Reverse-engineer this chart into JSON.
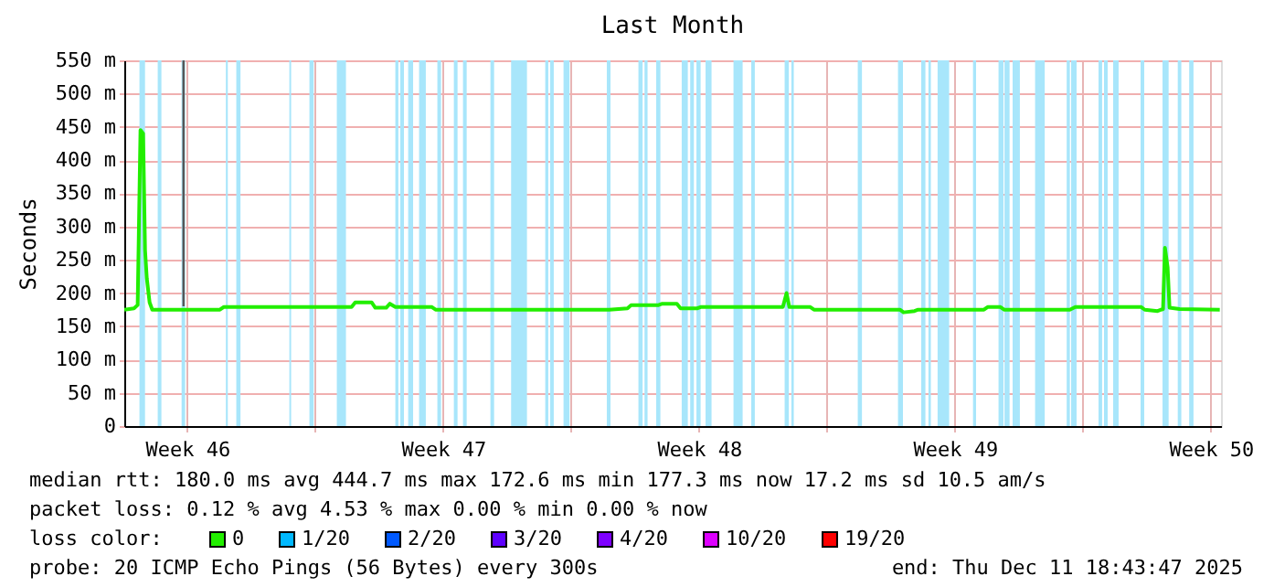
{
  "chart_data": {
    "type": "line",
    "title": "Last Month",
    "ylabel": "Seconds",
    "legend_title": "loss color:",
    "legend": "bottom",
    "grid": true,
    "xlim": [
      "2025-11-11T18:43",
      "2025-12-11T18:43"
    ],
    "xticks": [
      {
        "value": "2025-11-13T12:00",
        "label": "Week 46"
      },
      {
        "value": "2025-11-17T00:00",
        "label": null
      },
      {
        "value": "2025-11-20T12:00",
        "label": "Week 47"
      },
      {
        "value": "2025-11-24T00:00",
        "label": null
      },
      {
        "value": "2025-11-27T12:00",
        "label": "Week 48"
      },
      {
        "value": "2025-12-01T00:00",
        "label": null
      },
      {
        "value": "2025-12-04T12:00",
        "label": "Week 49"
      },
      {
        "value": "2025-12-08T00:00",
        "label": null
      },
      {
        "value": "2025-12-11T12:00",
        "label": "Week 50"
      }
    ],
    "ylim": [
      0,
      550
    ],
    "yticks": [
      0,
      {
        "value": 50,
        "label": "50 m"
      },
      {
        "value": 100,
        "label": "100 m"
      },
      {
        "value": 150,
        "label": "150 m"
      },
      {
        "value": 200,
        "label": "200 m"
      },
      {
        "value": 250,
        "label": "250 m"
      },
      {
        "value": 300,
        "label": "300 m"
      },
      {
        "value": 350,
        "label": "350 m"
      },
      {
        "value": 400,
        "label": "400 m"
      },
      {
        "value": 450,
        "label": "450 m"
      },
      {
        "value": 500,
        "label": "500 m"
      },
      {
        "value": 550,
        "label": "550 m"
      }
    ],
    "series": [
      {
        "name": "0",
        "color": "#22ee00",
        "x": [
          "2025-11-11T18:45",
          "2025-11-12T01:05",
          "2025-11-12T03:30",
          "2025-11-12T05:20",
          "2025-11-12T07:05",
          "2025-11-12T08:20",
          "2025-11-12T09:30",
          "2025-11-12T11:20",
          "2025-11-12T13:05",
          "2025-11-14T09:30",
          "2025-11-14T11:55",
          "2025-11-17T23:55",
          "2025-11-18T02:20",
          "2025-11-18T13:05",
          "2025-11-18T15:30",
          "2025-11-18T22:40",
          "2025-11-19T01:05",
          "2025-11-19T04:40",
          "2025-11-20T04:40",
          "2025-11-20T07:05",
          "2025-11-25T01:05",
          "2025-11-25T13:05",
          "2025-11-25T15:30",
          "2025-11-26T09:30",
          "2025-11-26T11:55",
          "2025-11-26T21:30",
          "2025-11-26T23:55",
          "2025-11-27T10:40",
          "2025-11-27T13:05",
          "2025-11-29T19:05",
          "2025-11-29T21:30",
          "2025-11-29T23:20",
          "2025-11-30T13:05",
          "2025-11-30T15:30",
          "2025-12-02T23:55",
          "2025-12-03T02:20",
          "2025-12-03T09:30",
          "2025-12-03T11:55",
          "2025-12-05T07:05",
          "2025-12-05T09:30",
          "2025-12-05T17:55",
          "2025-12-05T20:20",
          "2025-12-07T15:30",
          "2025-12-07T19:05",
          "2025-12-09T14:20",
          "2025-12-09T16:40",
          "2025-12-10T01:05",
          "2025-12-10T04:40",
          "2025-12-10T05:55",
          "2025-12-10T07:40",
          "2025-12-10T08:55",
          "2025-12-10T15:30",
          "2025-12-11T17:55"
        ],
        "values": [
          175,
          177,
          182,
          445,
          440,
          265,
          222,
          186,
          175,
          175,
          179,
          179,
          186,
          186,
          178,
          178,
          184,
          179,
          179,
          175,
          175,
          177,
          182,
          182,
          184,
          184,
          177,
          177,
          179,
          179,
          200,
          179,
          179,
          175,
          175,
          171,
          173,
          175,
          175,
          179,
          179,
          175,
          175,
          179,
          179,
          175,
          173,
          176,
          268,
          239,
          178,
          176,
          175
        ]
      },
      {
        "name": "1/20",
        "color": "#00b8ff"
      },
      {
        "name": "2/20",
        "color": "#0059ff"
      },
      {
        "name": "3/20",
        "color": "#5e00ff"
      },
      {
        "name": "4/20",
        "color": "#7e00ff"
      },
      {
        "name": "10/20",
        "color": "#dd00ff"
      },
      {
        "name": "19/20",
        "color": "#ff0000"
      },
      {
        "color": "#555555",
        "x": [
          "2025-11-13T09:35",
          "2025-11-13T09:35"
        ],
        "values": [
          180,
          550
        ]
      }
    ],
    "bands": [
      {
        "axis": "x",
        "from": "2025-11-12T04:40",
        "to": "2025-11-12T08:20",
        "color": "#a8e6fb"
      },
      {
        "axis": "x",
        "from": "2025-11-12T16:40",
        "to": "2025-11-12T19:05",
        "color": "#a8e6fb"
      },
      {
        "axis": "x",
        "from": "2025-11-13T08:20",
        "to": "2025-11-13T10:40",
        "color": "#a8e6fb"
      },
      {
        "axis": "x",
        "from": "2025-11-14T13:25",
        "to": "2025-11-14T14:40",
        "color": "#a8e6fb"
      },
      {
        "axis": "x",
        "from": "2025-11-14T20:15",
        "to": "2025-11-14T23:00",
        "color": "#a8e6fb"
      },
      {
        "axis": "x",
        "from": "2025-11-16T07:05",
        "to": "2025-11-16T08:15",
        "color": "#a8e6fb"
      },
      {
        "axis": "x",
        "from": "2025-11-16T20:15",
        "to": "2025-11-16T23:00",
        "color": "#a8e6fb"
      },
      {
        "axis": "x",
        "from": "2025-11-17T14:15",
        "to": "2025-11-17T20:15",
        "color": "#a8e6fb"
      },
      {
        "axis": "x",
        "from": "2025-11-19T04:40",
        "to": "2025-11-19T06:40",
        "color": "#a8e6fb"
      },
      {
        "axis": "x",
        "from": "2025-11-19T07:55",
        "to": "2025-11-19T10:20",
        "color": "#a8e6fb"
      },
      {
        "axis": "x",
        "from": "2025-11-19T13:05",
        "to": "2025-11-19T16:20",
        "color": "#a8e6fb"
      },
      {
        "axis": "x",
        "from": "2025-11-19T20:15",
        "to": "2025-11-20T00:40",
        "color": "#a8e6fb"
      },
      {
        "axis": "x",
        "from": "2025-11-20T08:15",
        "to": "2025-11-20T10:40",
        "color": "#a8e6fb"
      },
      {
        "axis": "x",
        "from": "2025-11-20T19:05",
        "to": "2025-11-20T21:30",
        "color": "#a8e6fb"
      },
      {
        "axis": "x",
        "from": "2025-11-21T01:05",
        "to": "2025-11-21T03:30",
        "color": "#a8e6fb"
      },
      {
        "axis": "x",
        "from": "2025-11-21T19:05",
        "to": "2025-11-21T21:30",
        "color": "#a8e6fb"
      },
      {
        "axis": "x",
        "from": "2025-11-22T08:40",
        "to": "2025-11-22T19:05",
        "color": "#a8e6fb"
      },
      {
        "axis": "x",
        "from": "2025-11-23T07:05",
        "to": "2025-11-23T09:05",
        "color": "#a8e6fb"
      },
      {
        "axis": "x",
        "from": "2025-11-23T10:20",
        "to": "2025-11-23T12:40",
        "color": "#a8e6fb"
      },
      {
        "axis": "x",
        "from": "2025-11-23T19:05",
        "to": "2025-11-23T23:00",
        "color": "#a8e6fb"
      },
      {
        "axis": "x",
        "from": "2025-11-24T23:30",
        "to": "2025-11-25T01:55",
        "color": "#a8e6fb"
      },
      {
        "axis": "x",
        "from": "2025-11-25T20:15",
        "to": "2025-11-25T23:00",
        "color": "#a8e6fb"
      },
      {
        "axis": "x",
        "from": "2025-11-26T00:15",
        "to": "2025-11-26T02:15",
        "color": "#a8e6fb"
      },
      {
        "axis": "x",
        "from": "2025-11-26T07:55",
        "to": "2025-11-26T10:40",
        "color": "#a8e6fb"
      },
      {
        "axis": "x",
        "from": "2025-11-27T00:40",
        "to": "2025-11-27T04:40",
        "color": "#a8e6fb"
      },
      {
        "axis": "x",
        "from": "2025-11-27T06:15",
        "to": "2025-11-27T08:40",
        "color": "#a8e6fb"
      },
      {
        "axis": "x",
        "from": "2025-11-27T10:20",
        "to": "2025-11-27T13:05",
        "color": "#a8e6fb"
      },
      {
        "axis": "x",
        "from": "2025-11-27T16:20",
        "to": "2025-11-27T20:15",
        "color": "#a8e6fb"
      },
      {
        "axis": "x",
        "from": "2025-11-28T10:40",
        "to": "2025-11-28T16:40",
        "color": "#a8e6fb"
      },
      {
        "axis": "x",
        "from": "2025-11-28T22:20",
        "to": "2025-11-29T00:40",
        "color": "#a8e6fb"
      },
      {
        "axis": "x",
        "from": "2025-11-29T20:15",
        "to": "2025-11-29T23:00",
        "color": "#a8e6fb"
      },
      {
        "axis": "x",
        "from": "2025-11-30T00:40",
        "to": "2025-11-30T02:15",
        "color": "#a8e6fb"
      },
      {
        "axis": "x",
        "from": "2025-12-01T20:15",
        "to": "2025-12-01T23:00",
        "color": "#a8e6fb"
      },
      {
        "axis": "x",
        "from": "2025-12-02T22:40",
        "to": "2025-12-03T01:55",
        "color": "#a8e6fb"
      },
      {
        "axis": "x",
        "from": "2025-12-03T13:55",
        "to": "2025-12-03T16:40",
        "color": "#a8e6fb"
      },
      {
        "axis": "x",
        "from": "2025-12-03T18:40",
        "to": "2025-12-03T20:15",
        "color": "#a8e6fb"
      },
      {
        "axis": "x",
        "from": "2025-12-04T00:40",
        "to": "2025-12-04T08:15",
        "color": "#a8e6fb"
      },
      {
        "axis": "x",
        "from": "2025-12-04T23:55",
        "to": "2025-12-05T01:55",
        "color": "#a8e6fb"
      },
      {
        "axis": "x",
        "from": "2025-12-05T16:40",
        "to": "2025-12-05T19:55",
        "color": "#a8e6fb"
      },
      {
        "axis": "x",
        "from": "2025-12-05T20:35",
        "to": "2025-12-05T23:55",
        "color": "#a8e6fb"
      },
      {
        "axis": "x",
        "from": "2025-12-06T01:55",
        "to": "2025-12-06T06:40",
        "color": "#a8e6fb"
      },
      {
        "axis": "x",
        "from": "2025-12-06T16:40",
        "to": "2025-12-06T23:00",
        "color": "#a8e6fb"
      },
      {
        "axis": "x",
        "from": "2025-12-07T13:25",
        "to": "2025-12-07T15:30",
        "color": "#a8e6fb"
      },
      {
        "axis": "x",
        "from": "2025-12-07T16:20",
        "to": "2025-12-07T19:55",
        "color": "#a8e6fb"
      },
      {
        "axis": "x",
        "from": "2025-12-08T10:20",
        "to": "2025-12-08T12:40",
        "color": "#a8e6fb"
      },
      {
        "axis": "x",
        "from": "2025-12-08T13:55",
        "to": "2025-12-08T16:20",
        "color": "#a8e6fb"
      },
      {
        "axis": "x",
        "from": "2025-12-08T19:55",
        "to": "2025-12-08T23:30",
        "color": "#a8e6fb"
      },
      {
        "axis": "x",
        "from": "2025-12-09T13:55",
        "to": "2025-12-09T16:20",
        "color": "#a8e6fb"
      },
      {
        "axis": "x",
        "from": "2025-12-10T04:20",
        "to": "2025-12-10T08:20",
        "color": "#a8e6fb"
      },
      {
        "axis": "x",
        "from": "2025-12-10T14:20",
        "to": "2025-12-10T16:40",
        "color": "#a8e6fb"
      },
      {
        "axis": "x",
        "from": "2025-12-10T21:50",
        "to": "2025-12-11T00:40",
        "color": "#a8e6fb"
      }
    ],
    "annotations": [
      "median rtt:  180.0 ms avg  444.7 ms max  172.6 ms min  177.3 ms now  17.2 ms sd  10.5   am/s",
      "packet loss: 0.12 % avg  4.53 % max  0.00 % min  0.00 % now",
      "probe:       20 ICMP Echo Pings (56 Bytes) every 300s",
      "end: Thu Dec 11 18:43:47 2025"
    ]
  }
}
